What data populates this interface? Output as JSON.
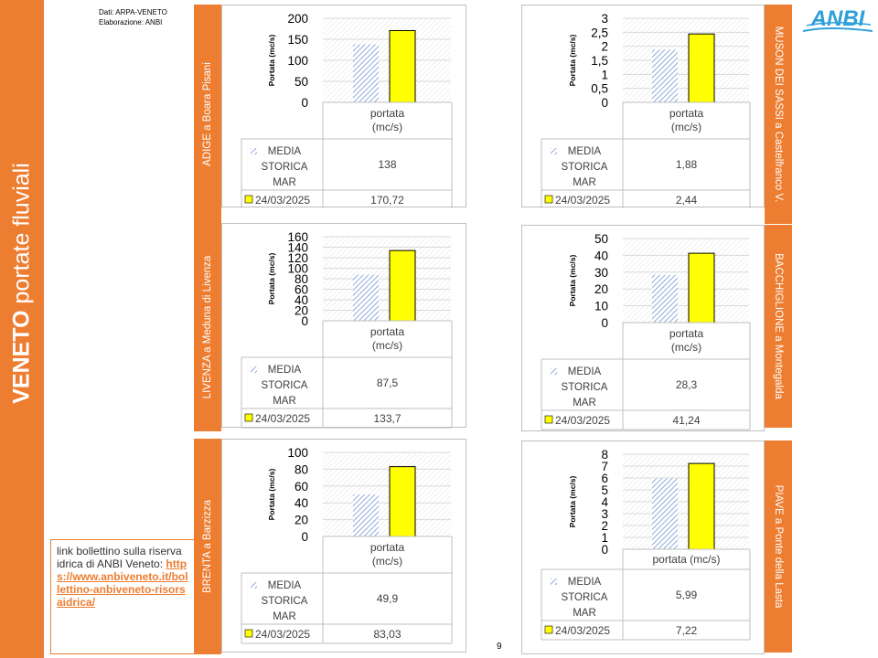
{
  "page": {
    "title_bold": "VENETO",
    "title_rest": " portate fluviali",
    "source_line1": "Dati: ARPA-VENETO",
    "source_line2": "Elaborazione: ANBI",
    "link_text": "link bollettino sulla riserva idrica di ANBI Veneto:",
    "link_url": "https://www.anbiveneto.it/bollettino-anbiveneto-risorsaidrica/",
    "logo_text": "ANBI",
    "page_number": "9"
  },
  "colors": {
    "accent": "#ed7d31",
    "current_bar": "#ffff00",
    "historic_bar": "#8eaadb",
    "logo": "#2e9fd9"
  },
  "chart_data": [
    {
      "type": "bar",
      "station": "ADIGE a Boara Pisani",
      "category": "portata (mc/s)",
      "ylabel": "Portata (mc/s)",
      "ylim": [
        0,
        200
      ],
      "yticks": [
        0,
        50,
        100,
        150,
        200
      ],
      "series": [
        {
          "name": "MEDIA STORICA MAR",
          "value": 138,
          "value_label": "138"
        },
        {
          "name": "24/03/2025",
          "value": 170.72,
          "value_label": "170,72"
        }
      ]
    },
    {
      "type": "bar",
      "station": "MUSON DEI SASSI a Castelfranco V.",
      "category": "portata (mc/s)",
      "ylabel": "Portata (mc/s)",
      "ylim": [
        0,
        3
      ],
      "yticks": [
        0,
        0.5,
        1,
        1.5,
        2,
        2.5,
        3
      ],
      "series": [
        {
          "name": "MEDIA STORICA MAR",
          "value": 1.88,
          "value_label": "1,88"
        },
        {
          "name": "24/03/2025",
          "value": 2.44,
          "value_label": "2,44"
        }
      ]
    },
    {
      "type": "bar",
      "station": "LIVENZA a Meduna di Livenza",
      "category": "portata (mc/s)",
      "ylabel": "Portata (mc/s)",
      "ylim": [
        0,
        160
      ],
      "yticks": [
        0,
        20,
        40,
        60,
        80,
        100,
        120,
        140,
        160
      ],
      "series": [
        {
          "name": "MEDIA STORICA MAR",
          "value": 87.5,
          "value_label": "87,5"
        },
        {
          "name": "24/03/2025",
          "value": 133.7,
          "value_label": "133,7"
        }
      ]
    },
    {
      "type": "bar",
      "station": "BACCHIGLIONE a Montegalda",
      "category": "portata (mc/s)",
      "ylabel": "Portata (mc/s)",
      "ylim": [
        0,
        50
      ],
      "yticks": [
        0,
        10,
        20,
        30,
        40,
        50
      ],
      "series": [
        {
          "name": "MEDIA STORICA MAR",
          "value": 28.3,
          "value_label": "28,3"
        },
        {
          "name": "24/03/2025",
          "value": 41.24,
          "value_label": "41,24"
        }
      ]
    },
    {
      "type": "bar",
      "station": "BRENTA a Barzizza",
      "category": "portata (mc/s)",
      "ylabel": "Portata (mc/s)",
      "ylim": [
        0,
        100
      ],
      "yticks": [
        0,
        20,
        40,
        60,
        80,
        100
      ],
      "series": [
        {
          "name": "MEDIA STORICA MAR",
          "value": 49.9,
          "value_label": "49,9"
        },
        {
          "name": "24/03/2025",
          "value": 83.03,
          "value_label": "83,03"
        }
      ]
    },
    {
      "type": "bar",
      "station": "PIAVE a Ponte della Lasta",
      "category": "portata (mc/s)",
      "ylabel": "Portata (mc/s)",
      "ylim": [
        0,
        8
      ],
      "yticks": [
        0,
        1,
        2,
        3,
        4,
        5,
        6,
        7,
        8
      ],
      "series": [
        {
          "name": "MEDIA STORICA MAR",
          "value": 5.99,
          "value_label": "5,99"
        },
        {
          "name": "24/03/2025",
          "value": 7.22,
          "value_label": "7,22"
        }
      ]
    }
  ]
}
